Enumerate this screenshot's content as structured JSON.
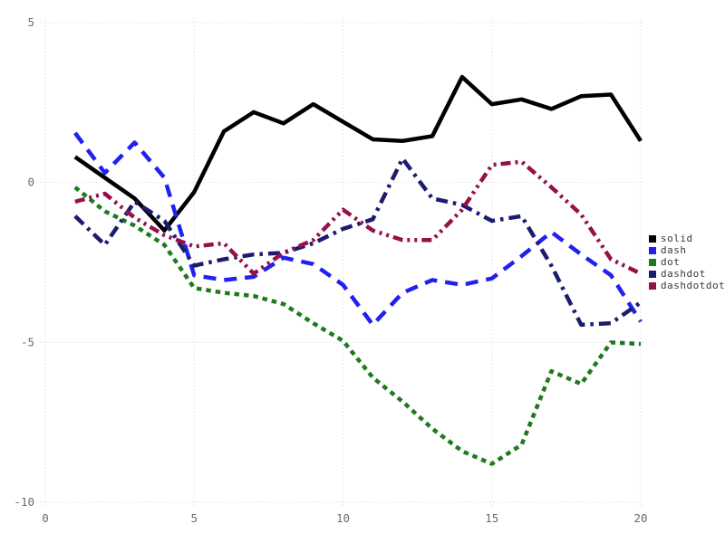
{
  "chart_data": {
    "type": "line",
    "title": "",
    "xlabel": "",
    "ylabel": "",
    "xlim": [
      0,
      20
    ],
    "ylim": [
      -10,
      5
    ],
    "xticks": [
      0,
      5,
      10,
      15,
      20
    ],
    "yticks": [
      5,
      0,
      -5,
      -10
    ],
    "grid": "dotted",
    "legend_position": "right",
    "x": [
      1,
      2,
      3,
      4,
      5,
      6,
      7,
      8,
      9,
      10,
      11,
      12,
      13,
      14,
      15,
      16,
      17,
      18,
      19,
      20
    ],
    "series": [
      {
        "name": "solid",
        "color": "#000000",
        "dash": "solid",
        "values": [
          0.8,
          0.15,
          -0.5,
          -1.5,
          -0.3,
          1.6,
          2.2,
          1.85,
          2.45,
          1.9,
          1.35,
          1.3,
          1.45,
          3.3,
          2.45,
          2.6,
          2.3,
          2.7,
          2.75,
          1.3
        ]
      },
      {
        "name": "dash",
        "color": "#2020f0",
        "dash": "dash",
        "values": [
          1.55,
          0.3,
          1.25,
          0.15,
          -2.9,
          -3.05,
          -2.95,
          -2.35,
          -2.55,
          -3.2,
          -4.45,
          -3.45,
          -3.05,
          -3.2,
          -3.0,
          -2.3,
          -1.55,
          -2.25,
          -2.9,
          -4.35
        ]
      },
      {
        "name": "dot",
        "color": "#1e7a1e",
        "dash": "dot",
        "values": [
          -0.15,
          -0.9,
          -1.35,
          -1.95,
          -3.3,
          -3.45,
          -3.55,
          -3.8,
          -4.4,
          -4.95,
          -6.1,
          -6.85,
          -7.7,
          -8.4,
          -8.8,
          -8.2,
          -5.9,
          -6.3,
          -5.0,
          -5.05
        ]
      },
      {
        "name": "dashdot",
        "color": "#1c1c6e",
        "dash": "dashdot",
        "values": [
          -1.05,
          -1.95,
          -0.6,
          -1.2,
          -2.6,
          -2.4,
          -2.25,
          -2.2,
          -1.9,
          -1.45,
          -1.15,
          0.75,
          -0.5,
          -0.7,
          -1.2,
          -1.05,
          -2.6,
          -4.45,
          -4.4,
          -3.75
        ]
      },
      {
        "name": "dashdotdot",
        "color": "#96104a",
        "dash": "dashdotdot",
        "values": [
          -0.6,
          -0.35,
          -1.1,
          -1.65,
          -2.0,
          -1.9,
          -2.85,
          -2.2,
          -1.8,
          -0.85,
          -1.5,
          -1.8,
          -1.8,
          -0.85,
          0.55,
          0.65,
          -0.15,
          -1.0,
          -2.4,
          -2.85
        ]
      }
    ],
    "style": {
      "grid_color": "#dddde9",
      "tick_label_color": "#6b6b6b",
      "line_width": 4.5
    }
  }
}
